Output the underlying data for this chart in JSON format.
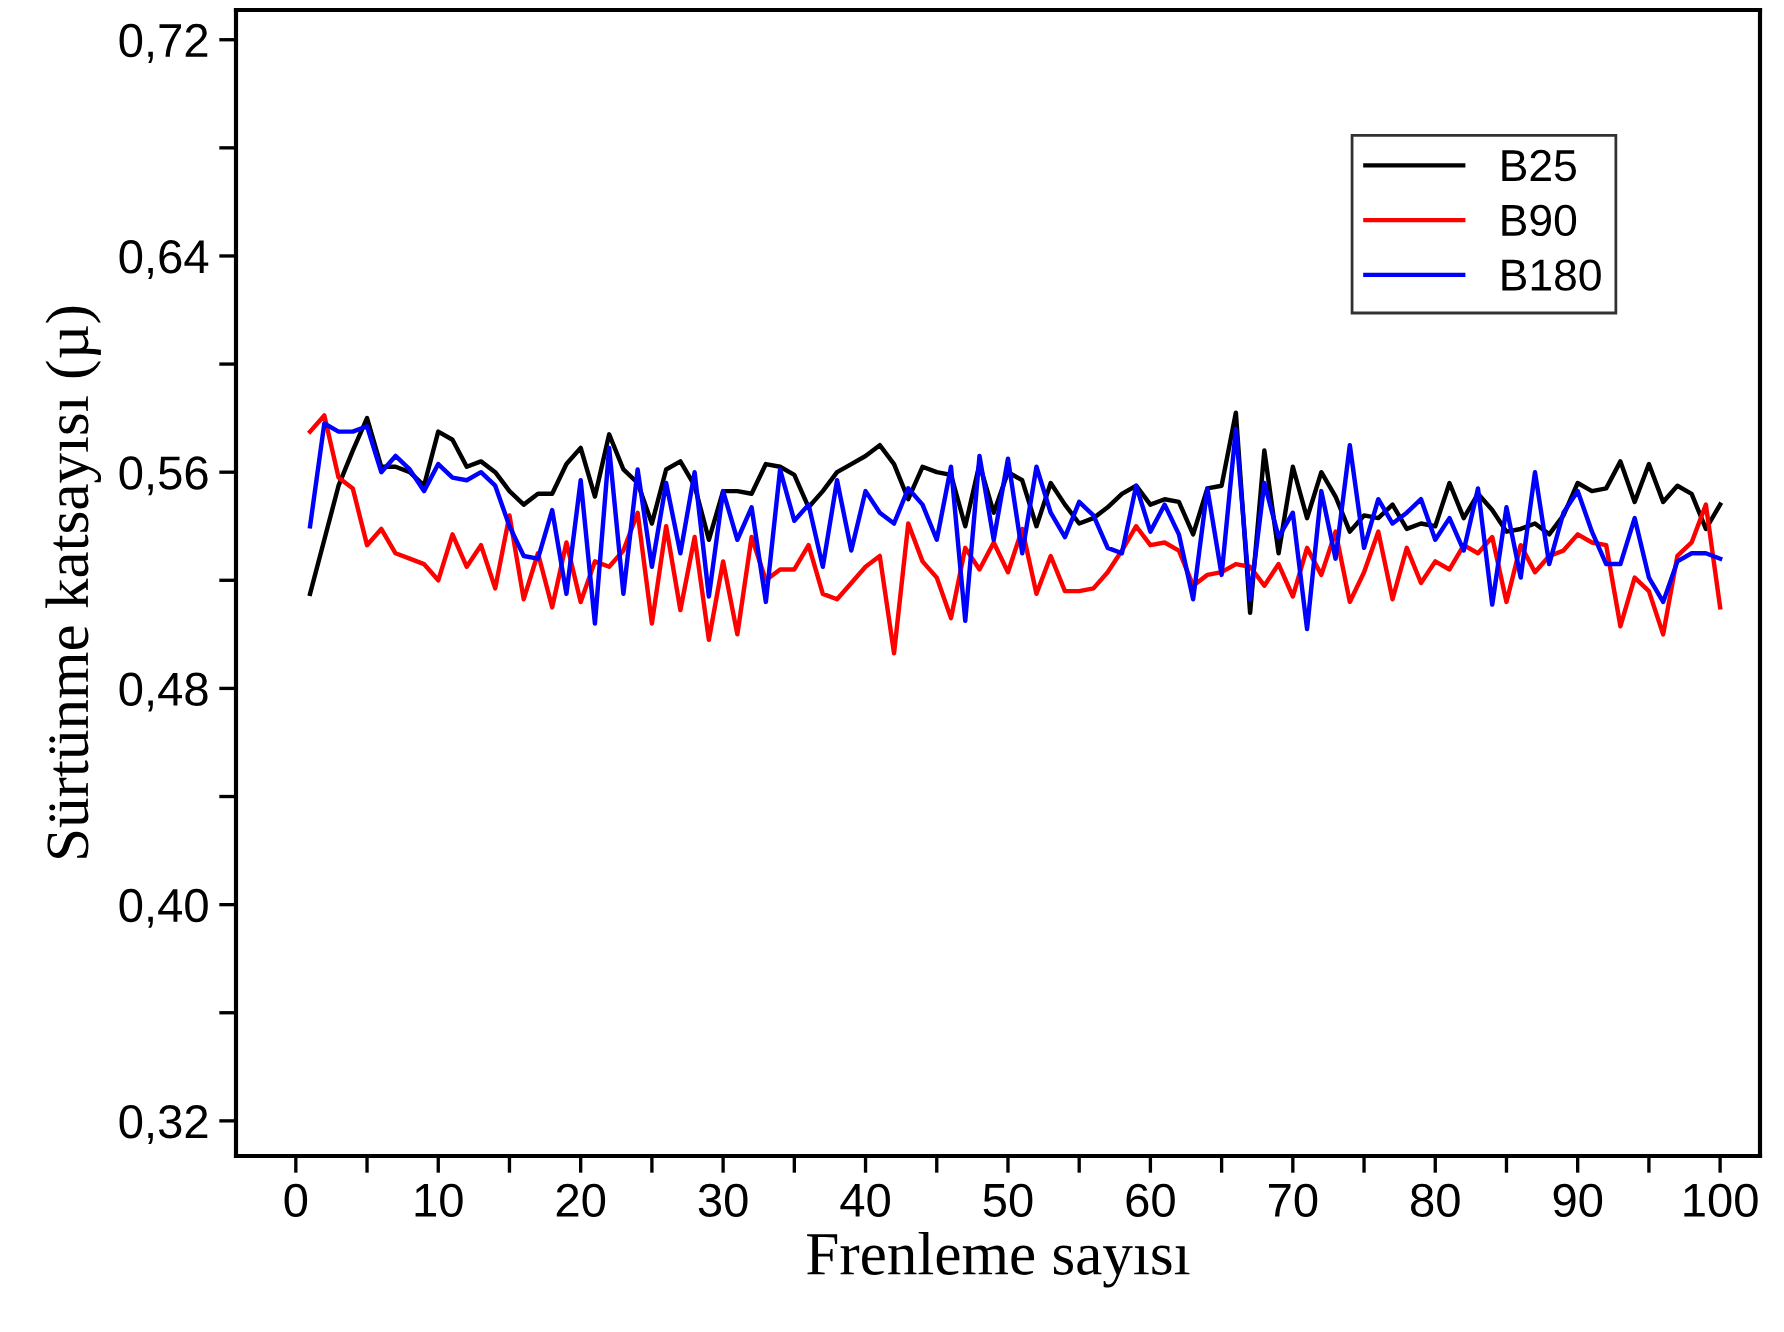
{
  "chart_data": {
    "type": "line",
    "xlabel": "Frenleme sayısı",
    "ylabel": "Sürtünme katsayısı (µ)",
    "x": [
      1,
      2,
      3,
      4,
      5,
      6,
      7,
      8,
      9,
      10,
      11,
      12,
      13,
      14,
      15,
      16,
      17,
      18,
      19,
      20,
      21,
      22,
      23,
      24,
      25,
      26,
      27,
      28,
      29,
      30,
      31,
      32,
      33,
      34,
      35,
      36,
      37,
      38,
      39,
      40,
      41,
      42,
      43,
      44,
      45,
      46,
      47,
      48,
      49,
      50,
      51,
      52,
      53,
      54,
      55,
      56,
      57,
      58,
      59,
      60,
      61,
      62,
      63,
      64,
      65,
      66,
      67,
      68,
      69,
      70,
      71,
      72,
      73,
      74,
      75,
      76,
      77,
      78,
      79,
      80,
      81,
      82,
      83,
      84,
      85,
      86,
      87,
      88,
      89,
      90,
      91,
      92,
      93,
      94,
      95,
      96,
      97,
      98,
      99,
      100
    ],
    "series": [
      {
        "name": "B25",
        "color": "#000000",
        "values": [
          0.515,
          0.535,
          0.555,
          0.568,
          0.58,
          0.562,
          0.562,
          0.56,
          0.555,
          0.575,
          0.572,
          0.562,
          0.564,
          0.56,
          0.553,
          0.548,
          0.552,
          0.552,
          0.563,
          0.569,
          0.551,
          0.574,
          0.561,
          0.556,
          0.541,
          0.561,
          0.564,
          0.555,
          0.535,
          0.553,
          0.553,
          0.552,
          0.563,
          0.562,
          0.559,
          0.547,
          0.553,
          0.56,
          0.563,
          0.566,
          0.57,
          0.563,
          0.55,
          0.562,
          0.56,
          0.559,
          0.54,
          0.563,
          0.545,
          0.56,
          0.557,
          0.54,
          0.556,
          0.548,
          0.541,
          0.543,
          0.547,
          0.552,
          0.555,
          0.548,
          0.55,
          0.549,
          0.537,
          0.554,
          0.555,
          0.582,
          0.508,
          0.568,
          0.53,
          0.562,
          0.543,
          0.56,
          0.551,
          0.538,
          0.544,
          0.543,
          0.548,
          0.539,
          0.541,
          0.54,
          0.556,
          0.543,
          0.552,
          0.546,
          0.538,
          0.539,
          0.541,
          0.537,
          0.544,
          0.556,
          0.553,
          0.554,
          0.564,
          0.549,
          0.563,
          0.549,
          0.555,
          0.552,
          0.539,
          0.548
        ]
      },
      {
        "name": "B90",
        "color": "#ff0000",
        "values": [
          0.575,
          0.581,
          0.558,
          0.554,
          0.533,
          0.539,
          0.53,
          0.528,
          0.526,
          0.52,
          0.537,
          0.525,
          0.533,
          0.517,
          0.544,
          0.513,
          0.53,
          0.51,
          0.534,
          0.512,
          0.527,
          0.525,
          0.531,
          0.545,
          0.504,
          0.54,
          0.509,
          0.536,
          0.498,
          0.527,
          0.5,
          0.536,
          0.52,
          0.524,
          0.524,
          0.533,
          0.515,
          0.513,
          0.519,
          0.525,
          0.529,
          0.493,
          0.541,
          0.527,
          0.521,
          0.506,
          0.532,
          0.524,
          0.534,
          0.523,
          0.539,
          0.515,
          0.529,
          0.516,
          0.516,
          0.517,
          0.523,
          0.531,
          0.54,
          0.533,
          0.534,
          0.531,
          0.518,
          0.522,
          0.523,
          0.526,
          0.525,
          0.518,
          0.526,
          0.514,
          0.532,
          0.522,
          0.538,
          0.512,
          0.523,
          0.538,
          0.513,
          0.532,
          0.519,
          0.527,
          0.524,
          0.533,
          0.53,
          0.536,
          0.512,
          0.533,
          0.523,
          0.529,
          0.531,
          0.537,
          0.534,
          0.533,
          0.503,
          0.521,
          0.516,
          0.5,
          0.529,
          0.534,
          0.548,
          0.51
        ]
      },
      {
        "name": "B180",
        "color": "#0000ff",
        "values": [
          0.54,
          0.578,
          0.575,
          0.575,
          0.577,
          0.56,
          0.566,
          0.561,
          0.553,
          0.563,
          0.558,
          0.557,
          0.56,
          0.555,
          0.54,
          0.529,
          0.528,
          0.546,
          0.515,
          0.557,
          0.504,
          0.569,
          0.515,
          0.561,
          0.525,
          0.556,
          0.53,
          0.56,
          0.514,
          0.553,
          0.535,
          0.547,
          0.512,
          0.561,
          0.542,
          0.548,
          0.525,
          0.557,
          0.531,
          0.553,
          0.545,
          0.541,
          0.554,
          0.548,
          0.535,
          0.562,
          0.505,
          0.566,
          0.535,
          0.565,
          0.53,
          0.562,
          0.545,
          0.536,
          0.549,
          0.544,
          0.532,
          0.53,
          0.555,
          0.538,
          0.548,
          0.537,
          0.513,
          0.554,
          0.522,
          0.576,
          0.513,
          0.556,
          0.536,
          0.545,
          0.502,
          0.553,
          0.528,
          0.57,
          0.532,
          0.55,
          0.541,
          0.545,
          0.55,
          0.535,
          0.543,
          0.531,
          0.554,
          0.511,
          0.547,
          0.521,
          0.56,
          0.526,
          0.545,
          0.553,
          0.538,
          0.526,
          0.526,
          0.543,
          0.521,
          0.512,
          0.527,
          0.53,
          0.53,
          0.528
        ]
      }
    ],
    "xlim": [
      -4.2,
      102.8
    ],
    "ylim": [
      0.307,
      0.731
    ],
    "xticks": [
      0,
      {
        "value": 5,
        "label": null
      },
      10,
      {
        "value": 15,
        "label": null
      },
      20,
      {
        "value": 25,
        "label": null
      },
      30,
      {
        "value": 35,
        "label": null
      },
      40,
      {
        "value": 45,
        "label": null
      },
      50,
      {
        "value": 55,
        "label": null
      },
      60,
      {
        "value": 65,
        "label": null
      },
      70,
      {
        "value": 75,
        "label": null
      },
      80,
      {
        "value": 85,
        "label": null
      },
      90,
      {
        "value": 95,
        "label": null
      },
      100
    ],
    "yticks": [
      {
        "value": 0.32,
        "label": "0,32"
      },
      {
        "value": 0.36,
        "label": null
      },
      {
        "value": 0.4,
        "label": "0,40"
      },
      {
        "value": 0.44,
        "label": null
      },
      {
        "value": 0.48,
        "label": "0,48"
      },
      {
        "value": 0.52,
        "label": null
      },
      {
        "value": 0.56,
        "label": "0,56"
      },
      {
        "value": 0.6,
        "label": null
      },
      {
        "value": 0.64,
        "label": "0,64"
      },
      {
        "value": 0.68,
        "label": null
      },
      {
        "value": 0.72,
        "label": "0,72"
      }
    ],
    "grid": false,
    "legend": "top right",
    "marker": "none",
    "line_style": "solid"
  }
}
